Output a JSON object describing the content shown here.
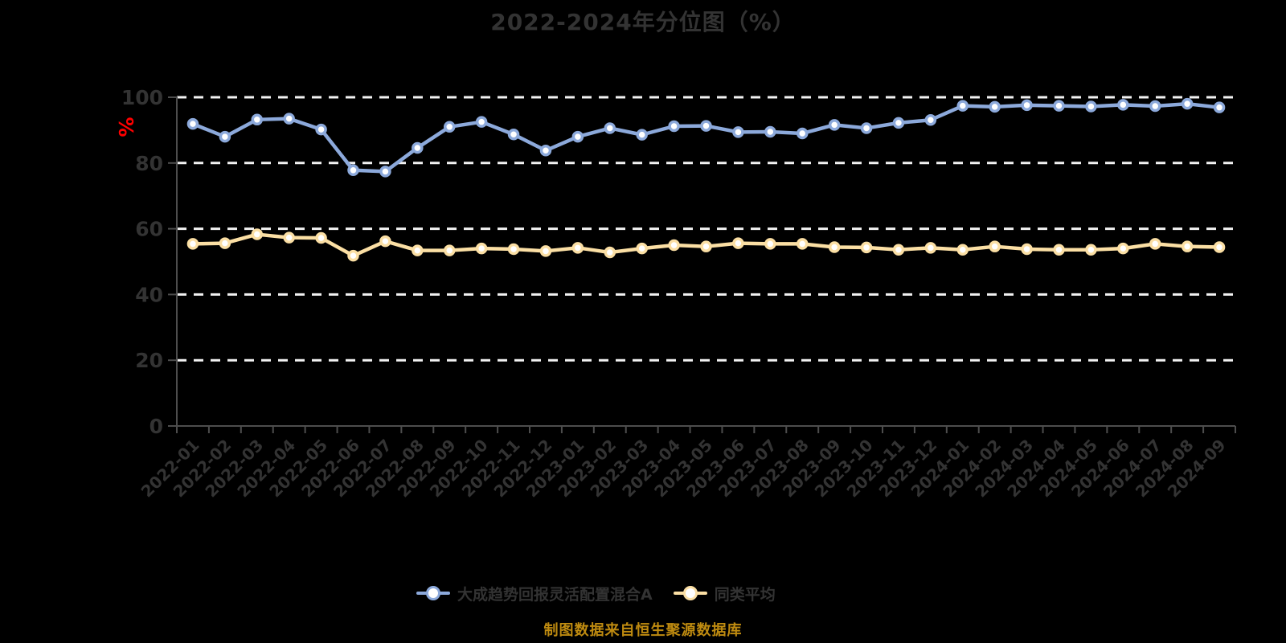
{
  "title": {
    "text": "2022-2024年分位图（%）",
    "color": "#333333"
  },
  "footer": {
    "text": "制图数据来自恒生聚源数据库",
    "color": "#bf8b10"
  },
  "colors": {
    "background": "#000000",
    "gridline": "#f2f2f2",
    "axis_line": "#4d4d4d",
    "axis_label": "#333333",
    "y_axis_name": "#ff0000",
    "marker_fill": "#ffffff"
  },
  "chart_data": {
    "type": "line",
    "title": "2022-2024年分位图（%）",
    "xlabel": "",
    "ylabel": "%",
    "ylim": [
      0,
      100
    ],
    "yticks": [
      0,
      20,
      40,
      60,
      80,
      100
    ],
    "grid": "horizontal-dashed-white",
    "legend_position": "bottom",
    "categories": [
      "2022-01",
      "2022-02",
      "2022-03",
      "2022-04",
      "2022-05",
      "2022-06",
      "2022-07",
      "2022-08",
      "2022-09",
      "2022-10",
      "2022-11",
      "2022-12",
      "2023-01",
      "2023-02",
      "2023-03",
      "2023-04",
      "2023-05",
      "2023-06",
      "2023-07",
      "2023-08",
      "2023-09",
      "2023-10",
      "2023-11",
      "2023-12",
      "2024-01",
      "2024-02",
      "2024-03",
      "2024-04",
      "2024-05",
      "2024-06",
      "2024-07",
      "2024-08",
      "2024-09"
    ],
    "series": [
      {
        "name": "大成趋势回报灵活配置混合A",
        "color": "#8ca9db",
        "values": [
          91.9,
          88.0,
          93.2,
          93.5,
          90.2,
          77.8,
          77.4,
          84.6,
          91.0,
          92.5,
          88.7,
          83.8,
          88.0,
          90.6,
          88.6,
          91.2,
          91.3,
          89.4,
          89.5,
          89.0,
          91.6,
          90.6,
          92.2,
          93.1,
          97.4,
          97.1,
          97.6,
          97.4,
          97.2,
          97.7,
          97.3,
          98.0,
          96.9
        ]
      },
      {
        "name": "同类平均",
        "color": "#fbdfa4",
        "values": [
          55.4,
          55.6,
          58.3,
          57.3,
          57.2,
          51.8,
          56.2,
          53.4,
          53.4,
          54.0,
          53.8,
          53.2,
          54.2,
          52.8,
          54.0,
          55.0,
          54.6,
          55.6,
          55.4,
          55.4,
          54.4,
          54.3,
          53.6,
          54.2,
          53.6,
          54.6,
          53.8,
          53.6,
          53.6,
          54.0,
          55.4,
          54.6,
          54.4
        ]
      }
    ]
  }
}
